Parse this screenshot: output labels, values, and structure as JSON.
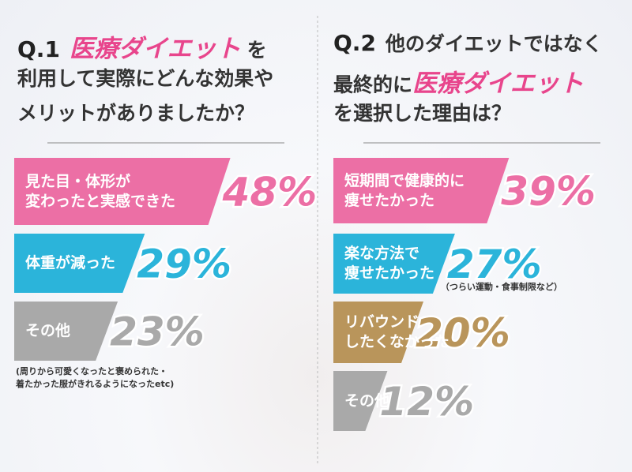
{
  "chart_data": [
    {
      "type": "bar",
      "title_lines": [
        [
          {
            "text": "Q.1",
            "style": "number"
          },
          {
            "text": "医療ダイエット",
            "style": "highlight"
          },
          {
            "text": "を",
            "style": "plain"
          }
        ],
        [
          {
            "text": "利用して実際にどんな効果や",
            "style": "plain"
          }
        ],
        [
          {
            "text": "メリットがありましたか？",
            "style": "plain"
          }
        ]
      ],
      "categories": [
        "見た目・体形が\n変わったと実感できた",
        "体重が減った",
        "その他"
      ],
      "values": [
        48,
        29,
        23
      ],
      "value_labels": [
        "48%",
        "29%",
        "23%"
      ],
      "colors": [
        "#ec6fa5",
        "#2bb4da",
        "#a9a9a9"
      ],
      "notes": [
        null,
        null,
        "(周りから可愛くなったと褒められた・\n着たかった服がきれるようになったetc)"
      ]
    },
    {
      "type": "bar",
      "title_lines": [
        [
          {
            "text": "Q.2",
            "style": "number"
          },
          {
            "text": "他のダイエットではなく",
            "style": "plain"
          }
        ],
        [
          {
            "text": "最終的に",
            "style": "plain"
          },
          {
            "text": "医療ダイエット",
            "style": "highlight"
          }
        ],
        [
          {
            "text": "を選択した理由は？",
            "style": "plain"
          }
        ]
      ],
      "categories": [
        "短期間で健康的に\n痩せたかった",
        "楽な方法で\n痩せたかった",
        "リバウンド\nしたくなかった",
        "その他"
      ],
      "values": [
        39,
        27,
        20,
        12
      ],
      "value_labels": [
        "39%",
        "27%",
        "20%",
        "12%"
      ],
      "colors": [
        "#ec6fa5",
        "#2bb4da",
        "#b9955b",
        "#a9a9a9"
      ],
      "notes": [
        null,
        "（つらい運動・食事制限など）",
        null,
        null
      ]
    }
  ]
}
